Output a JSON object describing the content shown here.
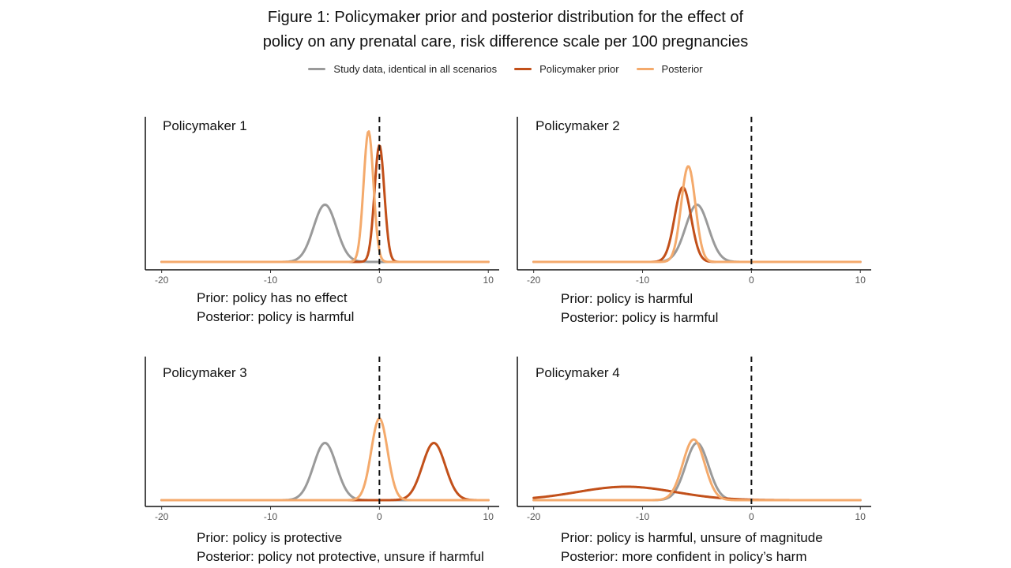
{
  "figure": {
    "title_line1": "Figure 1: Policymaker prior and posterior distribution for the effect of",
    "title_line2": "policy on any prenatal care, risk difference scale per 100 pregnancies"
  },
  "legend": [
    {
      "label": "Study data, identical in all scenarios",
      "color": "#9a9a9a"
    },
    {
      "label": "Policymaker prior",
      "color": "#c2501a"
    },
    {
      "label": "Posterior",
      "color": "#f4aa6c"
    }
  ],
  "chart_data": [
    {
      "type": "line",
      "title": "Policymaker 1",
      "caption_line1": "Prior: policy has no effect",
      "caption_line2": "Posterior: policy is harmful",
      "xlim": [
        -21.5,
        11
      ],
      "xticks": [
        -20,
        -10,
        0,
        10
      ],
      "reference_line_x": 0,
      "series": [
        {
          "name": "Study data, identical in all scenarios",
          "mean": -5,
          "sd": 1.05,
          "peak": 0.49
        },
        {
          "name": "Policymaker prior",
          "mean": 0,
          "sd": 0.45,
          "peak": 1.0
        },
        {
          "name": "Posterior",
          "mean": -1.0,
          "sd": 0.45,
          "peak": 1.12
        }
      ]
    },
    {
      "type": "line",
      "title": "Policymaker 2",
      "caption_line1": "Prior: policy is harmful",
      "caption_line2": "Posterior: policy is harmful",
      "xlim": [
        -21.5,
        11
      ],
      "xticks": [
        -20,
        -10,
        0,
        10
      ],
      "reference_line_x": 0,
      "series": [
        {
          "name": "Study data, identical in all scenarios",
          "mean": -5,
          "sd": 1.05,
          "peak": 0.49
        },
        {
          "name": "Policymaker prior",
          "mean": -6.3,
          "sd": 0.75,
          "peak": 0.64
        },
        {
          "name": "Posterior",
          "mean": -5.8,
          "sd": 0.65,
          "peak": 0.82
        }
      ]
    },
    {
      "type": "line",
      "title": "Policymaker 3",
      "caption_line1": "Prior: policy is protective",
      "caption_line2": "Posterior: policy not protective, unsure if harmful",
      "xlim": [
        -21.5,
        11
      ],
      "xticks": [
        -20,
        -10,
        0,
        10
      ],
      "reference_line_x": 0,
      "series": [
        {
          "name": "Study data, identical in all scenarios",
          "mean": -5,
          "sd": 1.05,
          "peak": 0.49
        },
        {
          "name": "Policymaker prior",
          "mean": 5,
          "sd": 1.05,
          "peak": 0.49
        },
        {
          "name": "Posterior",
          "mean": 0,
          "sd": 0.75,
          "peak": 0.7
        }
      ]
    },
    {
      "type": "line",
      "title": "Policymaker 4",
      "caption_line1": "Prior: policy is harmful, unsure of magnitude",
      "caption_line2": "Posterior: more confident in policy’s harm",
      "xlim": [
        -21.5,
        11
      ],
      "xticks": [
        -20,
        -10,
        0,
        10
      ],
      "reference_line_x": 0,
      "series": [
        {
          "name": "Study data, identical in all scenarios",
          "mean": -5,
          "sd": 1.05,
          "peak": 0.49
        },
        {
          "name": "Policymaker prior",
          "mean": -11.5,
          "sd": 4.5,
          "peak": 0.115
        },
        {
          "name": "Posterior",
          "mean": -5.3,
          "sd": 1.0,
          "peak": 0.52
        }
      ]
    }
  ]
}
